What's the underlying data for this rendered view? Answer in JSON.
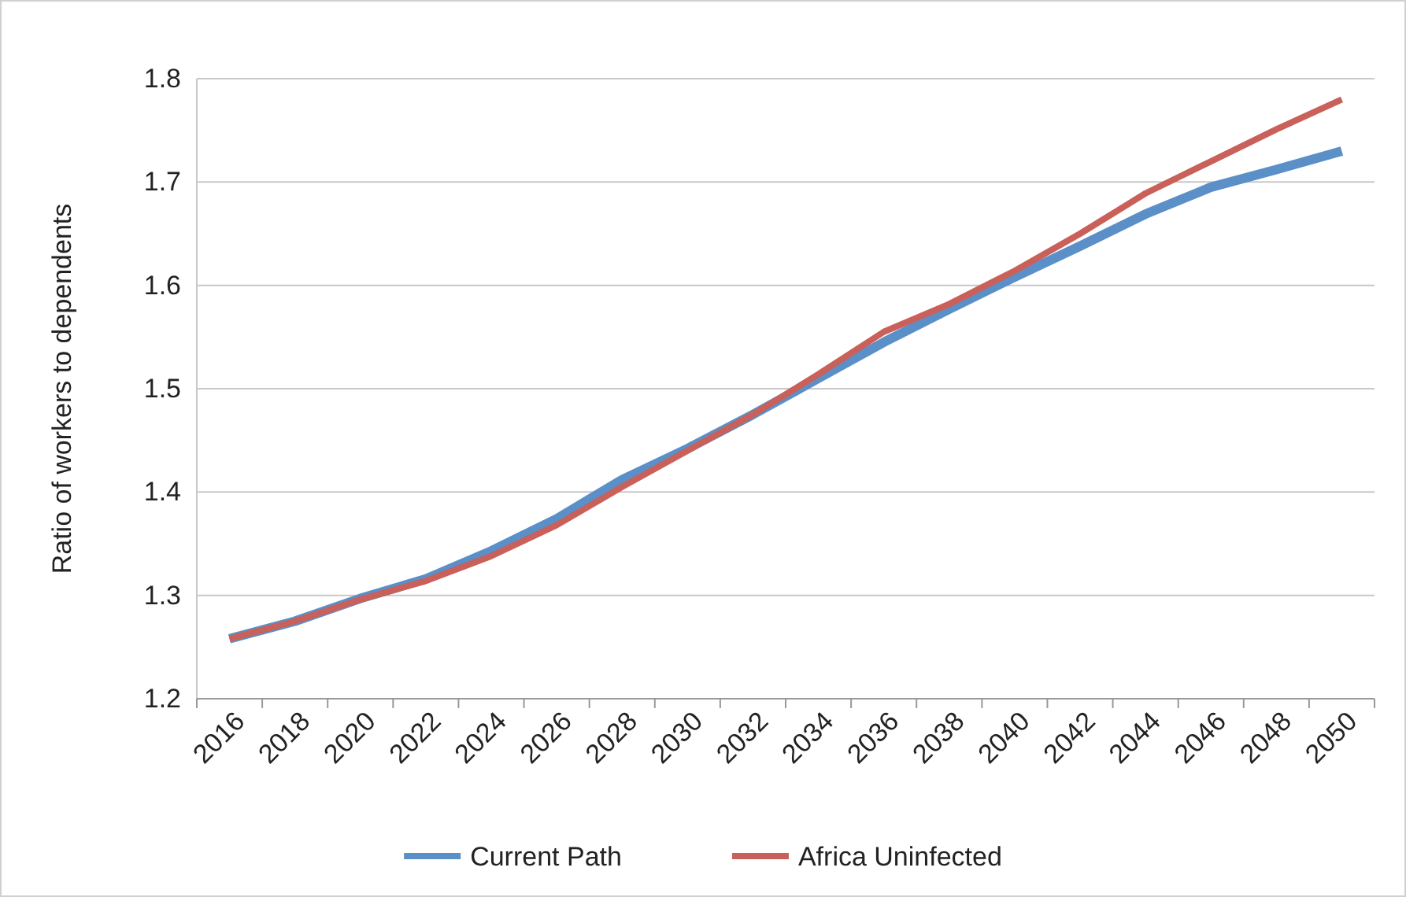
{
  "chart_data": {
    "type": "line",
    "ylabel": "Ratio of workers to dependents",
    "categories": [
      "2016",
      "2018",
      "2020",
      "2022",
      "2024",
      "2026",
      "2028",
      "2030",
      "2032",
      "2034",
      "2036",
      "2038",
      "2040",
      "2042",
      "2044",
      "2046",
      "2048",
      "2050"
    ],
    "series": [
      {
        "name": "Current Path",
        "color": "#5b8fc7",
        "values": [
          1.258,
          1.275,
          1.297,
          1.316,
          1.343,
          1.374,
          1.412,
          1.442,
          1.475,
          1.51,
          1.545,
          1.577,
          1.608,
          1.638,
          1.669,
          1.695,
          1.712,
          1.73
        ]
      },
      {
        "name": "Africa Uninfected",
        "color": "#c9605a",
        "values": [
          1.258,
          1.275,
          1.296,
          1.314,
          1.338,
          1.368,
          1.405,
          1.44,
          1.475,
          1.514,
          1.555,
          1.582,
          1.614,
          1.65,
          1.689,
          1.72,
          1.751,
          1.78
        ]
      }
    ],
    "ylim": [
      1.2,
      1.8
    ],
    "yticks": [
      1.2,
      1.3,
      1.4,
      1.5,
      1.6,
      1.7,
      1.8
    ],
    "grid": "y",
    "legend": "bottom",
    "marker": "none",
    "line_style": "solid"
  }
}
